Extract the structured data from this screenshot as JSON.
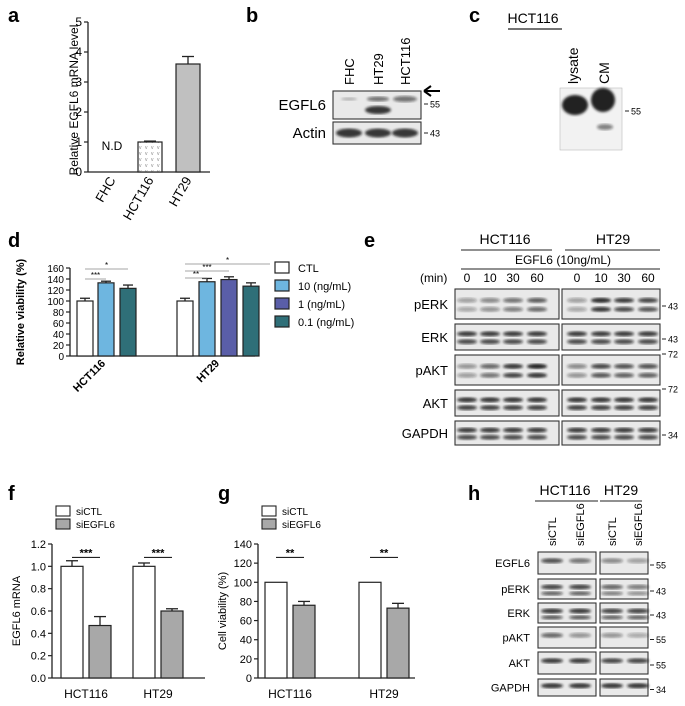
{
  "panel_labels": {
    "a": "a",
    "b": "b",
    "c": "c",
    "d": "d",
    "e": "e",
    "f": "f",
    "g": "g",
    "h": "h"
  },
  "blot_b": {
    "lanes": [
      "FHC",
      "HT29",
      "HCT116"
    ],
    "rows": [
      {
        "label": "EGFL6",
        "marker": "55"
      },
      {
        "label": "Actin",
        "marker": "43"
      }
    ]
  },
  "blot_c": {
    "title": "HCT116",
    "lanes": [
      "lysate",
      "CM"
    ],
    "marker": "55"
  },
  "blot_e": {
    "groups": [
      "HCT116",
      "HT29"
    ],
    "treatment": "EGFL6 (10ng/mL)",
    "time_label": "(min)",
    "times": [
      "0",
      "10",
      "30",
      "60"
    ],
    "rows": [
      {
        "label": "pERK",
        "marker": "43"
      },
      {
        "label": "ERK",
        "marker": "43"
      },
      {
        "label": "pAKT",
        "marker": "72"
      },
      {
        "label": "AKT",
        "marker": "72"
      },
      {
        "label": "GAPDH",
        "marker": "34"
      }
    ]
  },
  "blot_h": {
    "groups": [
      "HCT116",
      "HT29"
    ],
    "lanes": [
      "siCTL",
      "siEGFL6",
      "siCTL",
      "siEGFL6"
    ],
    "rows": [
      {
        "label": "EGFL6",
        "marker": "55"
      },
      {
        "label": "pERK",
        "marker": "43"
      },
      {
        "label": "ERK",
        "marker": "43"
      },
      {
        "label": "pAKT",
        "marker": "55"
      },
      {
        "label": "AKT",
        "marker": "55"
      },
      {
        "label": "GAPDH",
        "marker": "34"
      }
    ]
  },
  "colors": {
    "bar_a_hct116": "#ffffff",
    "bar_a_ht29": "#c0c0c0",
    "ctl": "#ffffff",
    "c10": "#6eb6e0",
    "c1": "#5a5ea8",
    "c01": "#2f6f78",
    "sictl": "#ffffff",
    "siegfl6": "#a8a8a8"
  },
  "chart_data": [
    {
      "panel": "a",
      "type": "bar",
      "ylabel": "Relative EGFL6 mRNA level",
      "categories": [
        "FHC",
        "HCT116",
        "HT29"
      ],
      "values": [
        0,
        1.0,
        3.6
      ],
      "errors": [
        0,
        0.03,
        0.25
      ],
      "ylim": [
        0,
        5
      ],
      "yticks": [
        0,
        1,
        2,
        3,
        4,
        5
      ],
      "annotations": [
        "N.D"
      ]
    },
    {
      "panel": "d",
      "type": "bar",
      "ylabel": "Relative viability (%)",
      "categories": [
        "HCT116",
        "HT29"
      ],
      "ylim": [
        0,
        160
      ],
      "yticks": [
        0,
        20,
        40,
        60,
        80,
        100,
        120,
        140,
        160
      ],
      "series": [
        {
          "name": "CTL",
          "values": [
            100,
            100
          ],
          "errors": [
            5,
            5
          ]
        },
        {
          "name": "10 (ng/mL)",
          "values": [
            133,
            135
          ],
          "errors": [
            3,
            6
          ]
        },
        {
          "name": "1 (ng/mL)",
          "values": [
            null,
            139
          ],
          "errors": [
            null,
            5
          ]
        },
        {
          "name": "0.1 (ng/mL)",
          "values": [
            123,
            127
          ],
          "errors": [
            6,
            6
          ]
        }
      ],
      "significance": [
        {
          "group": "HCT116",
          "label": "*"
        },
        {
          "group": "HCT116",
          "label": "***"
        },
        {
          "group": "HT29",
          "label": "*"
        },
        {
          "group": "HT29",
          "label": "***"
        },
        {
          "group": "HT29",
          "label": "**"
        }
      ],
      "legend": "right"
    },
    {
      "panel": "f",
      "type": "bar",
      "ylabel": "EGFL6 mRNA",
      "categories": [
        "HCT116",
        "HT29"
      ],
      "ylim": [
        0,
        1.2
      ],
      "yticks": [
        "0.0",
        "0.2",
        "0.4",
        "0.6",
        "0.8",
        "1.0",
        "1.2"
      ],
      "series": [
        {
          "name": "siCTL",
          "values": [
            1.0,
            1.0
          ],
          "errors": [
            0.05,
            0.03
          ]
        },
        {
          "name": "siEGFL6",
          "values": [
            0.47,
            0.6
          ],
          "errors": [
            0.08,
            0.02
          ]
        }
      ],
      "significance": [
        "***",
        "***"
      ],
      "legend": "top-left"
    },
    {
      "panel": "g",
      "type": "bar",
      "ylabel": "Cell viability (%)",
      "categories": [
        "HCT116",
        "HT29"
      ],
      "ylim": [
        0,
        140
      ],
      "yticks": [
        0,
        20,
        40,
        60,
        80,
        100,
        120,
        140
      ],
      "series": [
        {
          "name": "siCTL",
          "values": [
            100,
            100
          ],
          "errors": [
            0,
            0
          ]
        },
        {
          "name": "siEGFL6",
          "values": [
            76,
            73
          ],
          "errors": [
            4,
            5
          ]
        }
      ],
      "significance": [
        "**",
        "**"
      ],
      "legend": "top-left"
    }
  ]
}
